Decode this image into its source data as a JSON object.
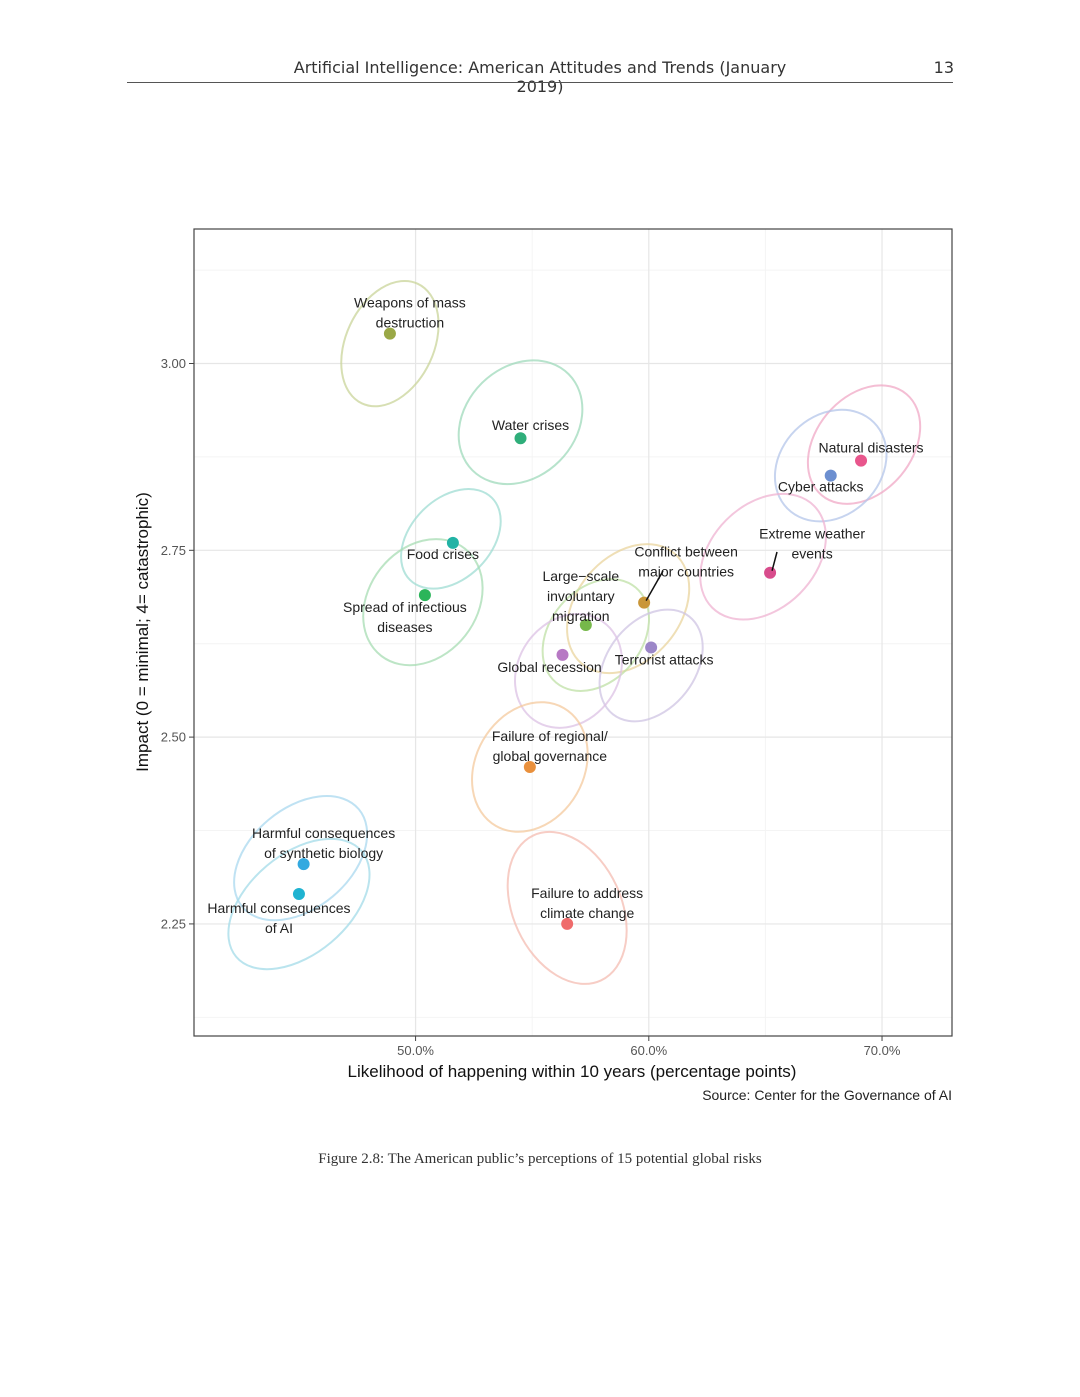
{
  "header": {
    "title": "Artificial Intelligence: American Attitudes and Trends (January 2019)",
    "page_number": "13"
  },
  "source": "Source: Center for the Governance of AI",
  "caption": "Figure 2.8: The American public’s perceptions of 15 potential global risks",
  "chart_data": {
    "type": "scatter",
    "title": "",
    "xlabel": "Likelihood of happening within 10 years (percentage points)",
    "ylabel": "Impact (0 = minimal; 4= catastrophic)",
    "xlim": [
      40.5,
      73.0
    ],
    "ylim": [
      2.1,
      3.18
    ],
    "x_ticks": [
      50,
      60,
      70
    ],
    "x_tick_labels": [
      "50.0%",
      "60.0%",
      "70.0%"
    ],
    "y_ticks": [
      2.25,
      2.5,
      2.75,
      3.0
    ],
    "y_tick_labels": [
      "2.25",
      "2.50",
      "2.75",
      "3.00"
    ],
    "grid": true,
    "series": [
      {
        "name": "Weapons of mass destruction",
        "label_lines": [
          "Weapons of mass",
          "destruction"
        ],
        "x": 48.9,
        "y": 3.04,
        "color": "#9aa846",
        "ellipse_color": "#c9d49a"
      },
      {
        "name": "Water crises",
        "label_lines": [
          "Water crises"
        ],
        "x": 54.5,
        "y": 2.9,
        "color": "#2fae7a",
        "ellipse_color": "#9fd9bb"
      },
      {
        "name": "Natural disasters",
        "label_lines": [
          "Natural disasters"
        ],
        "x": 69.1,
        "y": 2.87,
        "color": "#e8568c",
        "ellipse_color": "#f0a8c6"
      },
      {
        "name": "Cyber attacks",
        "label_lines": [
          "Cyber attacks"
        ],
        "x": 67.8,
        "y": 2.85,
        "color": "#6c8fd0",
        "ellipse_color": "#b4c6ea"
      },
      {
        "name": "Food crises",
        "label_lines": [
          "Food crises"
        ],
        "x": 51.6,
        "y": 2.76,
        "color": "#22b3a5",
        "ellipse_color": "#9fdcd3"
      },
      {
        "name": "Extreme weather events",
        "label_lines": [
          "Extreme weather",
          "events"
        ],
        "x": 65.2,
        "y": 2.72,
        "color": "#d84c8c",
        "ellipse_color": "#efb3d1"
      },
      {
        "name": "Spread of infectious diseases",
        "label_lines": [
          "Spread of infectious",
          "diseases"
        ],
        "x": 50.4,
        "y": 2.69,
        "color": "#2bb55a",
        "ellipse_color": "#a7dcb3"
      },
      {
        "name": "Conflict between major countries",
        "label_lines": [
          "Conflict between",
          "major countries"
        ],
        "x": 59.8,
        "y": 2.68,
        "color": "#c99638",
        "ellipse_color": "#ead49d"
      },
      {
        "name": "Large-scale involuntary migration",
        "label_lines": [
          "Large−scale",
          "involuntary",
          "migration"
        ],
        "x": 57.3,
        "y": 2.65,
        "color": "#76b84a",
        "ellipse_color": "#bfe0a6"
      },
      {
        "name": "Terrorist attacks",
        "label_lines": [
          "Terrorist attacks"
        ],
        "x": 60.1,
        "y": 2.62,
        "color": "#9c87c8",
        "ellipse_color": "#cfc4e3"
      },
      {
        "name": "Global recession",
        "label_lines": [
          "Global recession"
        ],
        "x": 56.3,
        "y": 2.61,
        "color": "#b779c4",
        "ellipse_color": "#dcc1e4"
      },
      {
        "name": "Failure of regional/global governance",
        "label_lines": [
          "Failure of regional/",
          "global governance"
        ],
        "x": 54.9,
        "y": 2.46,
        "color": "#e9903c",
        "ellipse_color": "#f4c99e"
      },
      {
        "name": "Harmful consequences of synthetic biology",
        "label_lines": [
          "Harmful consequences",
          "of synthetic biology"
        ],
        "x": 45.2,
        "y": 2.33,
        "color": "#33a9e0",
        "ellipse_color": "#a9d8ef"
      },
      {
        "name": "Harmful consequences of AI",
        "label_lines": [
          "Harmful consequences",
          "of AI"
        ],
        "x": 45.0,
        "y": 2.29,
        "color": "#1fb3d1",
        "ellipse_color": "#a3dbe8"
      },
      {
        "name": "Failure to address climate change",
        "label_lines": [
          "Failure to address",
          "climate change"
        ],
        "x": 56.5,
        "y": 2.25,
        "color": "#ef6b6b",
        "ellipse_color": "#f4bcb1"
      }
    ]
  }
}
